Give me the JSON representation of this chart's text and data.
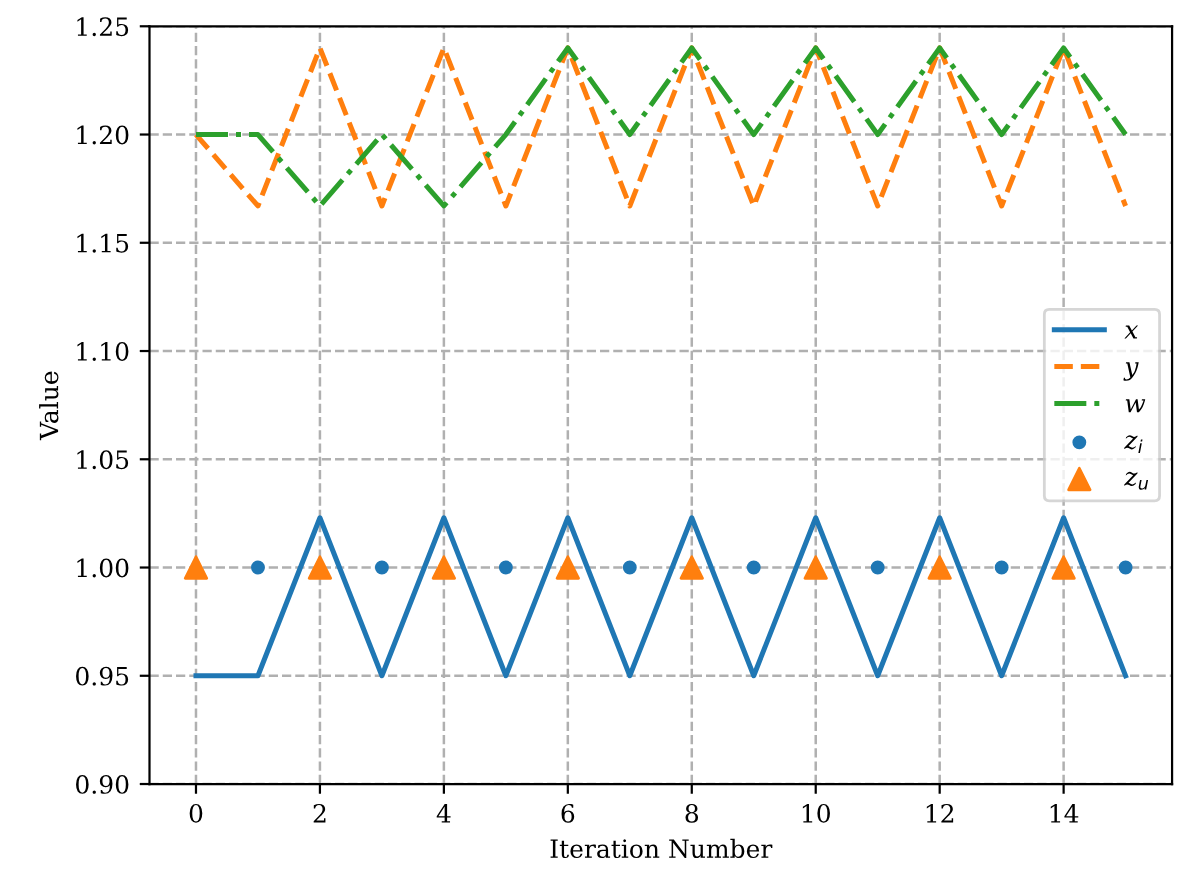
{
  "chart_data": {
    "type": "line",
    "xlabel": "Iteration Number",
    "ylabel": "Value",
    "x": [
      0,
      1,
      2,
      3,
      4,
      5,
      6,
      7,
      8,
      9,
      10,
      11,
      12,
      13,
      14,
      15
    ],
    "series": [
      {
        "name": "x",
        "color": "#1f77b4",
        "line_style": "solid",
        "values": [
          0.95,
          0.95,
          1.023,
          0.95,
          1.023,
          0.95,
          1.023,
          0.95,
          1.023,
          0.95,
          1.023,
          0.95,
          1.023,
          0.95,
          1.023,
          0.95
        ]
      },
      {
        "name": "y",
        "color": "#ff7f0e",
        "line_style": "dashed",
        "values": [
          1.2,
          1.167,
          1.24,
          1.167,
          1.24,
          1.167,
          1.24,
          1.167,
          1.24,
          1.167,
          1.24,
          1.167,
          1.24,
          1.167,
          1.24,
          1.167
        ]
      },
      {
        "name": "w",
        "color": "#2ca02c",
        "line_style": "dashdot",
        "values": [
          1.2,
          1.2,
          1.167,
          1.2,
          1.167,
          1.2,
          1.24,
          1.2,
          1.24,
          1.2,
          1.24,
          1.2,
          1.24,
          1.2,
          1.24,
          1.2
        ]
      },
      {
        "name": "z$_{i}$",
        "type": "scatter",
        "marker": "circle",
        "color": "#1f77b4",
        "x": [
          1,
          3,
          5,
          7,
          9,
          11,
          13,
          15
        ],
        "values": [
          1.0,
          1.0,
          1.0,
          1.0,
          1.0,
          1.0,
          1.0,
          1.0
        ]
      },
      {
        "name": "z$_{u}$",
        "type": "scatter",
        "marker": "triangle",
        "color": "#ff7f0e",
        "x": [
          0,
          2,
          4,
          6,
          8,
          10,
          12,
          14
        ],
        "values": [
          1.0,
          1.0,
          1.0,
          1.0,
          1.0,
          1.0,
          1.0,
          1.0
        ]
      }
    ],
    "xlim": [
      -0.75,
      15.75
    ],
    "xticks": [
      0,
      2,
      4,
      6,
      8,
      10,
      12,
      14
    ],
    "ylim": [
      0.9,
      1.25
    ],
    "yticks": [
      {
        "value": 0.9,
        "label": "0.90"
      },
      0.95,
      {
        "value": 1.0,
        "label": "1.00"
      },
      1.05,
      {
        "value": 1.1,
        "label": "1.10"
      },
      1.15,
      {
        "value": 1.2,
        "label": "1.20"
      },
      1.25
    ],
    "grid": true,
    "legend": "right"
  }
}
